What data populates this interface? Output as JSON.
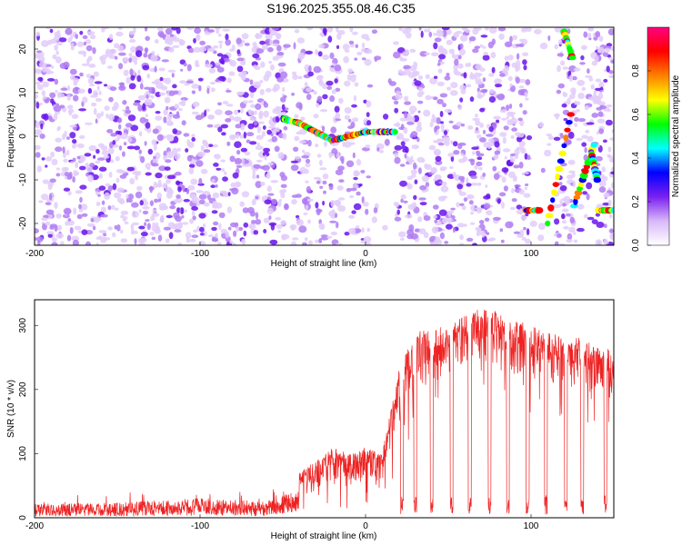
{
  "title": "S196.2025.355.08.46.C35",
  "chart_data": [
    {
      "type": "heatmap",
      "xlabel": "Height of straight line (km)",
      "ylabel": "Frequency (Hz)",
      "xlim": [
        -200,
        150
      ],
      "ylim": [
        -25,
        25
      ],
      "x_ticks": [
        "-200",
        "-100",
        "0",
        "100"
      ],
      "y_ticks": [
        "-20",
        "-10",
        "0",
        "10",
        "20"
      ],
      "colorbar": {
        "label": "Normalized spectral amplitude",
        "range": [
          0,
          1
        ],
        "ticks": [
          "0.0",
          "0.2",
          "0.4",
          "0.6",
          "0.8"
        ],
        "colors": [
          "#ffffff",
          "#d8b8f8",
          "#7a20f0",
          "#0000ff",
          "#00ffff",
          "#00ff00",
          "#ffff00",
          "#ff8000",
          "#ff0000",
          "#ff0080"
        ]
      },
      "tracks": [
        {
          "x": [
            -50,
            -40,
            -30,
            -20,
            -10,
            0,
            10,
            18
          ],
          "y": [
            4,
            3,
            1,
            -1,
            0,
            1,
            1,
            1
          ]
        },
        {
          "x": [
            97,
            105
          ],
          "y": [
            -17,
            -17
          ]
        },
        {
          "x": [
            141,
            150
          ],
          "y": [
            -17,
            -17
          ]
        },
        {
          "x": [
            120,
            125
          ],
          "y": [
            24,
            18
          ]
        },
        {
          "x": [
            126,
            138
          ],
          "y": [
            -16,
            -2
          ]
        },
        {
          "x": [
            136,
            140
          ],
          "y": [
            -3,
            -10
          ]
        },
        {
          "x": [
            110,
            124
          ],
          "y": [
            -20,
            5
          ]
        }
      ],
      "grid": false
    },
    {
      "type": "line",
      "xlabel": "Height of straight line (km)",
      "ylabel": "SNR (10 * v/v)",
      "xlim": [
        -200,
        150
      ],
      "ylim": [
        0,
        340
      ],
      "x_ticks": [
        "-200",
        "-100",
        "0",
        "100"
      ],
      "y_ticks": [
        "0",
        "100",
        "200",
        "300"
      ],
      "color": "#ee2222",
      "envelope": [
        {
          "x": -200,
          "low": 2,
          "high": 35
        },
        {
          "x": -150,
          "low": 2,
          "high": 38
        },
        {
          "x": -100,
          "low": 3,
          "high": 50
        },
        {
          "x": -60,
          "low": 3,
          "high": 40
        },
        {
          "x": -40,
          "low": 8,
          "high": 70
        },
        {
          "x": -30,
          "low": 10,
          "high": 90
        },
        {
          "x": -20,
          "low": 10,
          "high": 110
        },
        {
          "x": -10,
          "low": 15,
          "high": 100
        },
        {
          "x": 0,
          "low": 20,
          "high": 110
        },
        {
          "x": 10,
          "low": 30,
          "high": 100
        },
        {
          "x": 20,
          "low": 80,
          "high": 230
        },
        {
          "x": 30,
          "low": 150,
          "high": 290
        },
        {
          "x": 50,
          "low": 180,
          "high": 300
        },
        {
          "x": 70,
          "low": 200,
          "high": 330
        },
        {
          "x": 90,
          "low": 170,
          "high": 310
        },
        {
          "x": 110,
          "low": 150,
          "high": 290
        },
        {
          "x": 130,
          "low": 140,
          "high": 280
        },
        {
          "x": 150,
          "low": 150,
          "high": 260
        }
      ],
      "dropouts": [
        22,
        30,
        40,
        52,
        63,
        75,
        86,
        98,
        109,
        121,
        131,
        145
      ],
      "grid": false
    }
  ]
}
